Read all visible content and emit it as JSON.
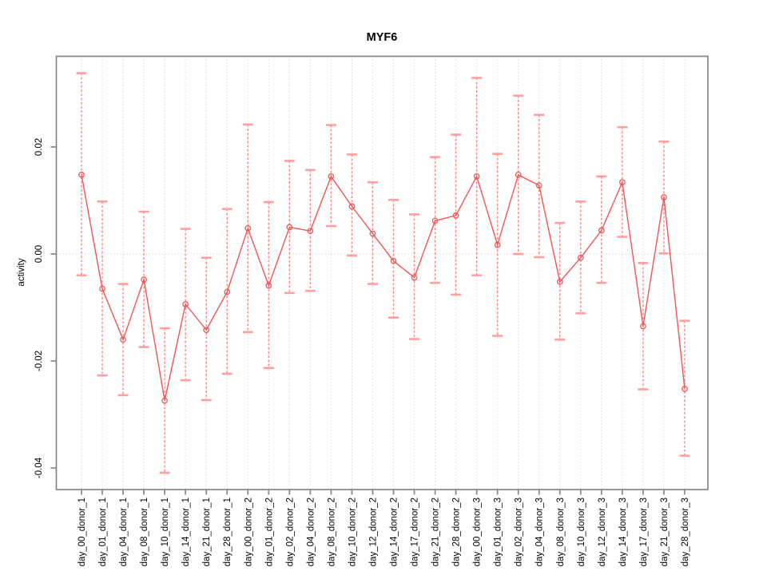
{
  "chart_data": {
    "type": "line",
    "title": "MYF6",
    "xlabel": "",
    "ylabel": "activity",
    "legend": "none",
    "grid": "vertical dotted gridline at every category; dotted horizontal line at y=0",
    "ylim": [
      -0.044,
      0.037
    ],
    "ytick_values": [
      -0.04,
      -0.02,
      0.0,
      0.02
    ],
    "ytick_labels": [
      "-0.04",
      "-0.02",
      "0.00",
      "0.02"
    ],
    "categories": [
      "day_00_donor_1",
      "day_01_donor_1",
      "day_04_donor_1",
      "day_08_donor_1",
      "day_10_donor_1",
      "day_14_donor_1",
      "day_21_donor_1",
      "day_28_donor_1",
      "day_00_donor_2",
      "day_01_donor_2",
      "day_02_donor_2",
      "day_04_donor_2",
      "day_08_donor_2",
      "day_10_donor_2",
      "day_12_donor_2",
      "day_14_donor_2",
      "day_17_donor_2",
      "day_21_donor_2",
      "day_28_donor_2",
      "day_00_donor_3",
      "day_01_donor_3",
      "day_02_donor_3",
      "day_04_donor_3",
      "day_08_donor_3",
      "day_10_donor_3",
      "day_12_donor_3",
      "day_14_donor_3",
      "day_17_donor_3",
      "day_21_donor_3",
      "day_28_donor_3"
    ],
    "series": [
      {
        "name": "activity",
        "values": [
          0.0148,
          -0.0065,
          -0.016,
          -0.0048,
          -0.0274,
          -0.0094,
          -0.0142,
          -0.0071,
          0.0048,
          -0.0059,
          0.005,
          0.0043,
          0.0145,
          0.0089,
          0.0038,
          -0.0013,
          -0.0044,
          0.0062,
          0.0072,
          0.0145,
          0.0017,
          0.0148,
          0.0128,
          -0.0052,
          -0.0007,
          0.0044,
          0.0134,
          -0.0135,
          0.0106,
          -0.0252
        ],
        "err_low": [
          -0.004,
          -0.0227,
          -0.0264,
          -0.0174,
          -0.0409,
          -0.0236,
          -0.0273,
          -0.0224,
          -0.0146,
          -0.0213,
          -0.0073,
          -0.0069,
          0.0052,
          -0.0003,
          -0.0056,
          -0.0119,
          -0.0159,
          -0.0054,
          -0.0076,
          -0.004,
          -0.0153,
          0.0,
          -0.0006,
          -0.016,
          -0.0111,
          -0.0054,
          0.0032,
          -0.0253,
          0.0001,
          -0.0377
        ],
        "err_high": [
          0.0338,
          0.0098,
          -0.0056,
          0.0079,
          -0.0139,
          0.0047,
          -0.0007,
          0.0084,
          0.0242,
          0.0097,
          0.0174,
          0.0157,
          0.0241,
          0.0186,
          0.0134,
          0.0101,
          0.0074,
          0.0181,
          0.0223,
          0.0329,
          0.0187,
          0.0296,
          0.026,
          0.0058,
          0.0098,
          0.0145,
          0.0237,
          -0.0017,
          0.021,
          -0.0125
        ]
      }
    ],
    "colors": {
      "line": "#f15555",
      "errbar": "#ff8080",
      "cap": "#ffa0a0",
      "grid": "#dcdcdc",
      "frame": "#878787",
      "text": "#000000"
    }
  }
}
